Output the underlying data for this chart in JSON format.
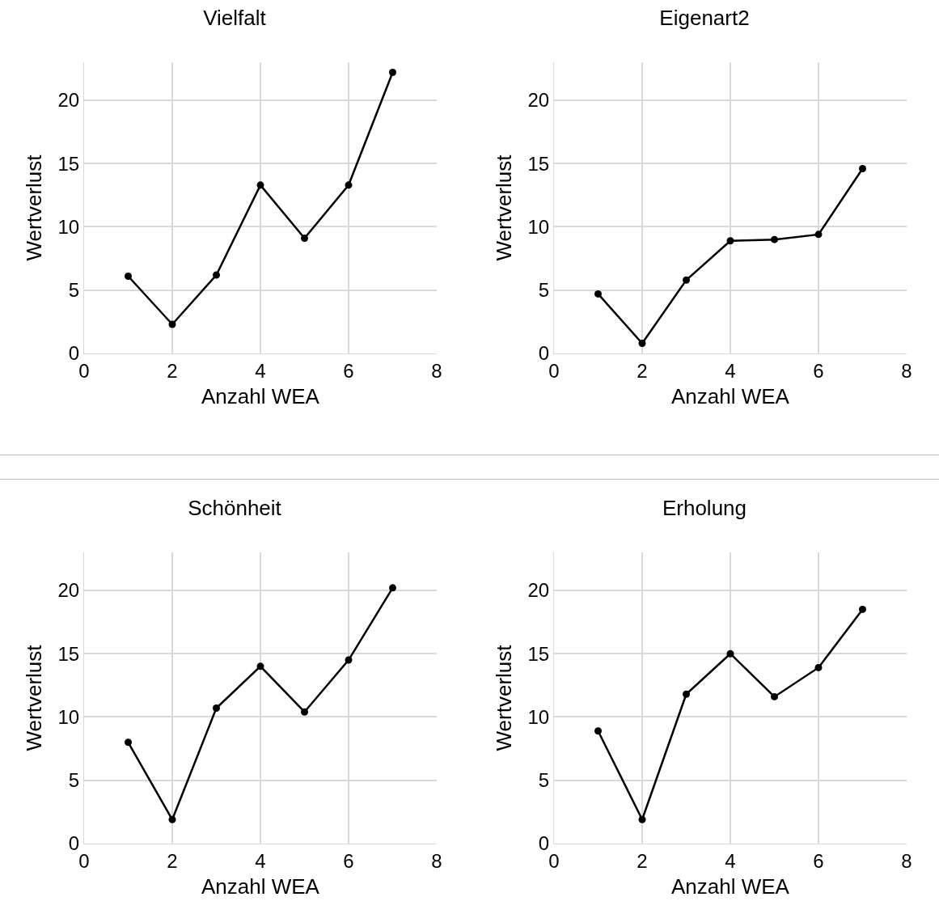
{
  "chart_data": [
    {
      "type": "line",
      "title": "Vielfalt",
      "xlabel": "Anzahl WEA",
      "ylabel": "Wertverlust",
      "x": [
        1,
        2,
        3,
        4,
        5,
        6,
        7
      ],
      "series": [
        {
          "color": "#000000",
          "values": [
            6.1,
            2.3,
            6.2,
            13.3,
            9.1,
            13.3,
            22.2
          ]
        }
      ],
      "xlim": [
        0,
        8
      ],
      "xticks": [
        0,
        2,
        4,
        6,
        8
      ],
      "ylim": [
        0,
        23
      ],
      "yticks": [
        0,
        5,
        10,
        15,
        20
      ],
      "grid": true,
      "marker": "circle",
      "line_style": "solid"
    },
    {
      "type": "line",
      "title": "Eigenart2",
      "xlabel": "Anzahl WEA",
      "ylabel": "Wertverlust",
      "x": [
        1,
        2,
        3,
        4,
        5,
        6,
        7
      ],
      "series": [
        {
          "color": "#000000",
          "values": [
            4.7,
            0.8,
            5.8,
            8.9,
            9.0,
            9.4,
            14.6
          ]
        }
      ],
      "xlim": [
        0,
        8
      ],
      "xticks": [
        0,
        2,
        4,
        6,
        8
      ],
      "ylim": [
        0,
        23
      ],
      "yticks": [
        0,
        5,
        10,
        15,
        20
      ],
      "grid": true,
      "marker": "circle",
      "line_style": "solid"
    },
    {
      "type": "line",
      "title": "Schönheit",
      "xlabel": "Anzahl WEA",
      "ylabel": "Wertverlust",
      "x": [
        1,
        2,
        3,
        4,
        5,
        6,
        7
      ],
      "series": [
        {
          "color": "#000000",
          "values": [
            8.0,
            1.9,
            10.7,
            14.0,
            10.4,
            14.5,
            20.2
          ]
        }
      ],
      "xlim": [
        0,
        8
      ],
      "xticks": [
        0,
        2,
        4,
        6,
        8
      ],
      "ylim": [
        0,
        23
      ],
      "yticks": [
        0,
        5,
        10,
        15,
        20
      ],
      "grid": true,
      "marker": "circle",
      "line_style": "solid"
    },
    {
      "type": "line",
      "title": "Erholung",
      "xlabel": "Anzahl WEA",
      "ylabel": "Wertverlust",
      "x": [
        1,
        2,
        3,
        4,
        5,
        6,
        7
      ],
      "series": [
        {
          "color": "#000000",
          "values": [
            8.9,
            1.9,
            11.8,
            15.0,
            11.6,
            13.9,
            18.5
          ]
        }
      ],
      "xlim": [
        0,
        8
      ],
      "xticks": [
        0,
        2,
        4,
        6,
        8
      ],
      "ylim": [
        0,
        23
      ],
      "yticks": [
        0,
        5,
        10,
        15,
        20
      ],
      "grid": true,
      "marker": "circle",
      "line_style": "solid"
    }
  ]
}
